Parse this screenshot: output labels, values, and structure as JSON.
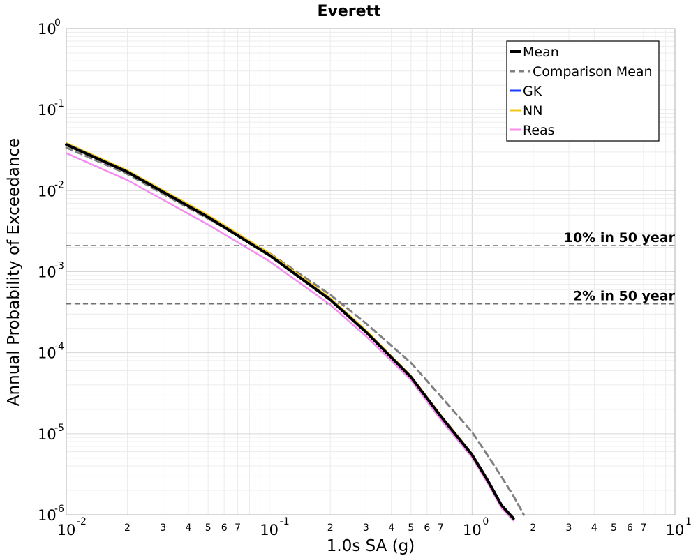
{
  "chart_data": {
    "type": "line",
    "title": "Everett",
    "xlabel": "1.0s SA (g)",
    "ylabel": "Annual Probability of Exceedance",
    "xscale": "log",
    "yscale": "log",
    "xlim": [
      0.01,
      10
    ],
    "ylim": [
      1e-06,
      1
    ],
    "grid": true,
    "legend_position": "top-right",
    "x_major_ticks": [
      {
        "value": 0.01,
        "base": "10",
        "exp": "-2"
      },
      {
        "value": 0.1,
        "base": "10",
        "exp": "-1"
      },
      {
        "value": 1,
        "base": "10",
        "exp": "0"
      },
      {
        "value": 10,
        "base": "10",
        "exp": "1"
      }
    ],
    "x_minor_tick_labels": [
      "2",
      "3",
      "4",
      "5",
      "6",
      "7"
    ],
    "y_major_ticks": [
      {
        "value": 1,
        "base": "10",
        "exp": "0"
      },
      {
        "value": 0.1,
        "base": "10",
        "exp": "-1"
      },
      {
        "value": 0.01,
        "base": "10",
        "exp": "-2"
      },
      {
        "value": 0.001,
        "base": "10",
        "exp": "-3"
      },
      {
        "value": 0.0001,
        "base": "10",
        "exp": "-4"
      },
      {
        "value": 1e-05,
        "base": "10",
        "exp": "-5"
      },
      {
        "value": 1e-06,
        "base": "10",
        "exp": "-6"
      }
    ],
    "reference_lines": [
      {
        "label": "10% in 50 year",
        "y": 0.0021
      },
      {
        "label": "2% in 50 year",
        "y": 0.0004
      }
    ],
    "series": [
      {
        "name": "Mean",
        "color": "#000000",
        "style": "solid",
        "width": 4,
        "x": [
          0.01,
          0.02,
          0.05,
          0.1,
          0.2,
          0.3,
          0.5,
          0.7,
          1.0,
          1.2,
          1.4,
          1.6
        ],
        "y": [
          0.037,
          0.017,
          0.0047,
          0.0016,
          0.00045,
          0.00018,
          5e-05,
          1.65e-05,
          5.5e-06,
          2.6e-06,
          1.3e-06,
          9e-07
        ]
      },
      {
        "name": "Comparison Mean",
        "color": "#808080",
        "style": "dashed",
        "width": 3,
        "x": [
          0.01,
          0.02,
          0.05,
          0.1,
          0.2,
          0.3,
          0.5,
          0.7,
          1.0,
          1.3,
          1.6,
          1.8
        ],
        "y": [
          0.034,
          0.016,
          0.0045,
          0.0017,
          0.00052,
          0.00023,
          7.5e-05,
          2.9e-05,
          1.05e-05,
          3.9e-06,
          1.7e-06,
          1e-06
        ]
      },
      {
        "name": "GK",
        "color": "#1a3cff",
        "style": "solid",
        "width": 2,
        "x": [
          0.01,
          0.02,
          0.05,
          0.1,
          0.2,
          0.3,
          0.5,
          0.7,
          1.0,
          1.2,
          1.4,
          1.6
        ],
        "y": [
          0.038,
          0.0172,
          0.0048,
          0.00162,
          0.000455,
          0.000182,
          5.05e-05,
          1.67e-05,
          5.6e-06,
          2.6e-06,
          1.3e-06,
          9e-07
        ]
      },
      {
        "name": "NN",
        "color": "#f0c419",
        "style": "solid",
        "width": 2,
        "x": [
          0.01,
          0.02,
          0.05,
          0.1,
          0.2,
          0.3,
          0.5,
          0.7,
          1.0,
          1.2,
          1.4,
          1.6
        ],
        "y": [
          0.039,
          0.0178,
          0.005,
          0.0017,
          0.000475,
          0.00019,
          5.2e-05,
          1.72e-05,
          5.7e-06,
          2.7e-06,
          1.3e-06,
          9e-07
        ]
      },
      {
        "name": "Reas",
        "color": "#f58cf0",
        "style": "solid",
        "width": 2.5,
        "x": [
          0.01,
          0.02,
          0.05,
          0.1,
          0.2,
          0.3,
          0.5,
          0.7,
          1.0,
          1.2,
          1.4,
          1.6
        ],
        "y": [
          0.029,
          0.0135,
          0.0038,
          0.00135,
          0.00039,
          0.00016,
          4.6e-05,
          1.5e-05,
          5.1e-06,
          2.4e-06,
          1.2e-06,
          8.5e-07
        ]
      }
    ]
  }
}
